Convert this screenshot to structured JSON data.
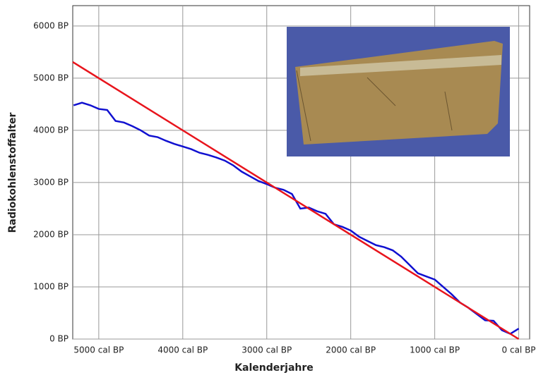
{
  "chart_data": {
    "type": "line",
    "x_label": "Kalenderjahre",
    "y_label": "Radiokohlenstoffalter",
    "xlim": [
      5310,
      -130
    ],
    "ylim": [
      0,
      6390
    ],
    "xticks": [
      {
        "value": 5000,
        "label": "5000 cal BP"
      },
      {
        "value": 4000,
        "label": "4000 cal BP"
      },
      {
        "value": 3000,
        "label": "3000 cal BP"
      },
      {
        "value": 2000,
        "label": "2000 cal BP"
      },
      {
        "value": 1000,
        "label": "1000 cal BP"
      },
      {
        "value": 0,
        "label": "0 cal BP"
      }
    ],
    "yticks": [
      {
        "value": 0,
        "label": "0 BP"
      },
      {
        "value": 1000,
        "label": "1000 BP"
      },
      {
        "value": 2000,
        "label": "2000 BP"
      },
      {
        "value": 3000,
        "label": "3000 BP"
      },
      {
        "value": 4000,
        "label": "4000 BP"
      },
      {
        "value": 5000,
        "label": "5000 BP"
      },
      {
        "value": 6000,
        "label": "6000 BP"
      }
    ],
    "grid": true,
    "series": [
      {
        "color": "#1010d0",
        "x": [
          5300,
          5200,
          5100,
          5000,
          4900,
          4800,
          4700,
          4600,
          4500,
          4400,
          4300,
          4200,
          4100,
          4000,
          3900,
          3800,
          3700,
          3600,
          3500,
          3400,
          3300,
          3200,
          3100,
          3000,
          2900,
          2800,
          2700,
          2600,
          2500,
          2400,
          2300,
          2200,
          2100,
          2000,
          1900,
          1800,
          1700,
          1600,
          1500,
          1400,
          1300,
          1200,
          1100,
          1000,
          900,
          800,
          700,
          600,
          500,
          400,
          300,
          200,
          100,
          0
        ],
        "values": [
          4480,
          4530,
          4480,
          4410,
          4390,
          4180,
          4150,
          4080,
          4000,
          3900,
          3870,
          3800,
          3740,
          3690,
          3640,
          3570,
          3530,
          3480,
          3420,
          3330,
          3210,
          3120,
          3030,
          2970,
          2900,
          2860,
          2780,
          2500,
          2520,
          2450,
          2400,
          2200,
          2150,
          2080,
          1960,
          1880,
          1800,
          1760,
          1700,
          1580,
          1420,
          1260,
          1200,
          1140,
          1000,
          860,
          700,
          600,
          480,
          360,
          350,
          170,
          100,
          200
        ]
      },
      {
        "color": "#e8141c",
        "x": [
          5310,
          0
        ],
        "values": [
          5310,
          0
        ]
      }
    ]
  }
}
